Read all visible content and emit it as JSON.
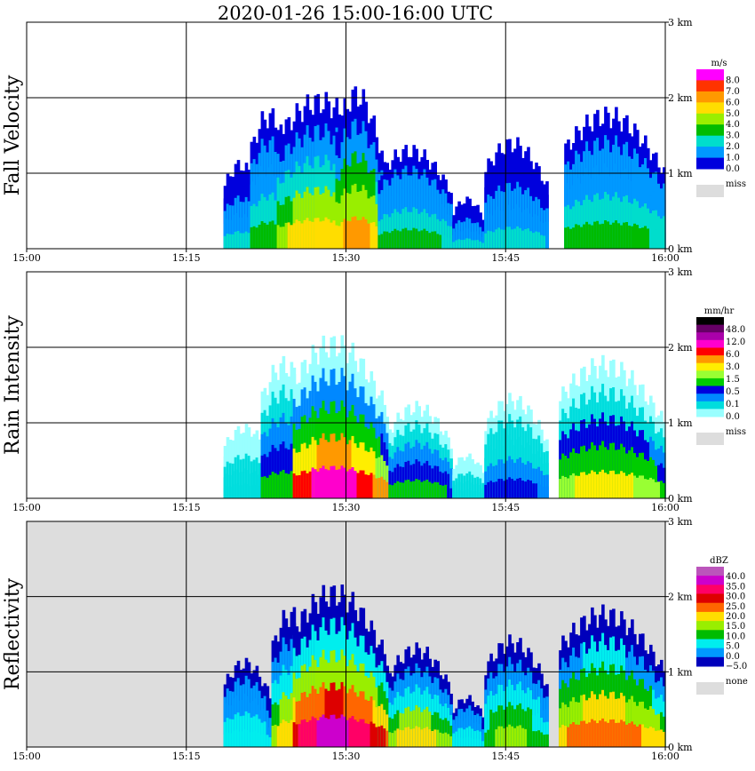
{
  "title": "2020-01-26   15:00-16:00 UTC",
  "chart_data": [
    {
      "type": "heatmap",
      "title": "Fall Velocity",
      "x_ticks": [
        "15:00",
        "15:15",
        "15:30",
        "15:45",
        "16:00"
      ],
      "y_ticks": [
        "0 km",
        "1 km",
        "2 km",
        "3 km"
      ],
      "x_range": [
        "15:00",
        "16:00"
      ],
      "y_range_km": [
        0,
        3.0
      ],
      "background": "#ffffff",
      "legend": {
        "unit": "m/s",
        "labels": [
          "8.0",
          "7.0",
          "6.0",
          "5.0",
          "4.0",
          "3.0",
          "2.0",
          "1.0",
          "0.0"
        ],
        "colors": [
          "#ff00ff",
          "#ff3300",
          "#ff9900",
          "#ffdd00",
          "#99ee00",
          "#00bb00",
          "#00ddcc",
          "#0099ff",
          "#0000dd"
        ],
        "miss_label": "miss",
        "miss_color": "#dddddd"
      },
      "echoes": [
        {
          "start": "15:18.5",
          "end": "15:22",
          "top_km": 1.2,
          "level": 2
        },
        {
          "start": "15:21",
          "end": "15:25",
          "top_km": 1.9,
          "level": 3
        },
        {
          "start": "15:23.5",
          "end": "15:33",
          "top_km": 2.1,
          "level": 5
        },
        {
          "start": "15:29",
          "end": "15:33.5",
          "top_km": 2.2,
          "level": 6
        },
        {
          "start": "15:33",
          "end": "15:40",
          "top_km": 1.4,
          "level": 3
        },
        {
          "start": "15:40",
          "end": "15:43",
          "top_km": 0.7,
          "level": 2
        },
        {
          "start": "15:43",
          "end": "15:49",
          "top_km": 1.5,
          "level": 2
        },
        {
          "start": "15:50.5",
          "end": "16:00",
          "top_km": 1.9,
          "level": 3
        }
      ]
    },
    {
      "type": "heatmap",
      "title": "Rain Intensity",
      "x_ticks": [
        "15:00",
        "15:15",
        "15:30",
        "15:45",
        "16:00"
      ],
      "y_ticks": [
        "0 km",
        "1 km",
        "2 km",
        "3 km"
      ],
      "x_range": [
        "15:00",
        "16:00"
      ],
      "y_range_km": [
        0,
        3.0
      ],
      "background": "#ffffff",
      "legend": {
        "unit": "mm/hr",
        "labels": [
          "48.0",
          "12.0",
          "6.0",
          "3.0",
          "1.5",
          "0.5",
          "0.1",
          "0.0"
        ],
        "colors": [
          "#000000",
          "#660066",
          "#aa00aa",
          "#ff00cc",
          "#ff0000",
          "#ff9900",
          "#ffee00",
          "#99ff33",
          "#00cc00",
          "#0000dd",
          "#0088ff",
          "#00dddd",
          "#99ffff"
        ],
        "miss_label": "miss",
        "miss_color": "#dddddd"
      },
      "echoes": [
        {
          "start": "15:18.5",
          "end": "15:23",
          "top_km": 1.0,
          "level": 1
        },
        {
          "start": "15:22",
          "end": "15:27",
          "top_km": 1.9,
          "level": 3
        },
        {
          "start": "15:25",
          "end": "15:34",
          "top_km": 2.2,
          "level": 6
        },
        {
          "start": "15:34",
          "end": "15:40",
          "top_km": 1.3,
          "level": 3
        },
        {
          "start": "15:40",
          "end": "15:43",
          "top_km": 0.6,
          "level": 1
        },
        {
          "start": "15:43",
          "end": "15:49",
          "top_km": 1.4,
          "level": 2
        },
        {
          "start": "15:50",
          "end": "16:00",
          "top_km": 1.9,
          "level": 4
        }
      ]
    },
    {
      "type": "heatmap",
      "title": "Reflectivity",
      "x_ticks": [
        "15:00",
        "15:15",
        "15:30",
        "15:45",
        "16:00"
      ],
      "y_ticks": [
        "0 km",
        "1 km",
        "2 km",
        "3 km"
      ],
      "x_range": [
        "15:00",
        "16:00"
      ],
      "y_range_km": [
        0,
        3.0
      ],
      "background": "#dddddd",
      "legend": {
        "unit": "dBZ",
        "labels": [
          "40.0",
          "35.0",
          "30.0",
          "25.0",
          "20.0",
          "15.0",
          "10.0",
          "5.0",
          "0.0",
          "−5.0"
        ],
        "colors": [
          "#bb55bb",
          "#cc00cc",
          "#ff0066",
          "#dd0000",
          "#ff6600",
          "#ffdd00",
          "#99ee00",
          "#00bb00",
          "#00eeee",
          "#0099ff",
          "#0000bb"
        ],
        "miss_label": "none",
        "miss_color": "#dddddd"
      },
      "echoes": [
        {
          "start": "15:18.5",
          "end": "15:23",
          "top_km": 1.2,
          "level": 2
        },
        {
          "start": "15:23",
          "end": "15:27",
          "top_km": 1.9,
          "level": 4
        },
        {
          "start": "15:25",
          "end": "15:34",
          "top_km": 2.2,
          "level": 7
        },
        {
          "start": "15:34",
          "end": "15:40",
          "top_km": 1.4,
          "level": 4
        },
        {
          "start": "15:40",
          "end": "15:43",
          "top_km": 0.7,
          "level": 2
        },
        {
          "start": "15:43",
          "end": "15:49",
          "top_km": 1.5,
          "level": 3
        },
        {
          "start": "15:50",
          "end": "16:00",
          "top_km": 1.9,
          "level": 5
        }
      ]
    }
  ]
}
